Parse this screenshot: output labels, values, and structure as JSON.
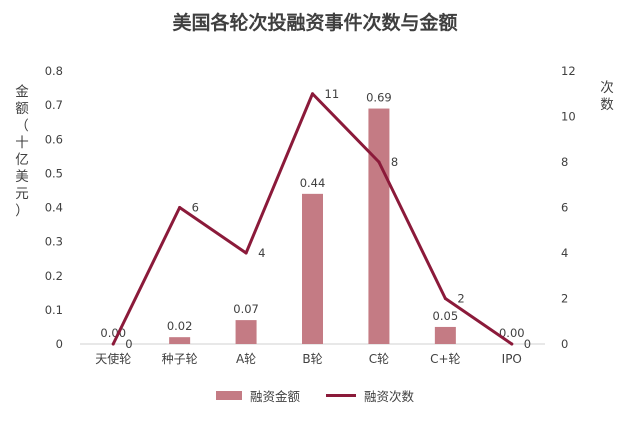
{
  "chart_data": {
    "type": "bar+line",
    "title": "美国各轮次投融资事件次数与金额",
    "ylabel_left": "金额（十亿美元）",
    "ylabel_right": "次数",
    "categories": [
      "天使轮",
      "种子轮",
      "A轮",
      "B轮",
      "C轮",
      "C+轮",
      "IPO"
    ],
    "series": [
      {
        "name": "融资金额",
        "type": "bar",
        "axis": "left",
        "values": [
          0.0,
          0.02,
          0.07,
          0.44,
          0.69,
          0.05,
          0.0
        ],
        "labels": [
          "0.00",
          "0.02",
          "0.07",
          "0.44",
          "0.69",
          "0.05",
          "0.00"
        ],
        "color": "#c47b84"
      },
      {
        "name": "融资次数",
        "type": "line",
        "axis": "right",
        "values": [
          0,
          6,
          4,
          11,
          8,
          2,
          0
        ],
        "labels": [
          "0",
          "6",
          "4",
          "11",
          "8",
          "2",
          "0"
        ],
        "color": "#8b1a3a"
      }
    ],
    "ylim_left": [
      0,
      0.8
    ],
    "yticks_left": [
      "0",
      "0.1",
      "0.2",
      "0.3",
      "0.4",
      "0.5",
      "0.6",
      "0.7",
      "0.8"
    ],
    "ylim_right": [
      0,
      12
    ],
    "yticks_right": [
      "0",
      "2",
      "4",
      "6",
      "8",
      "10",
      "12"
    ],
    "grid": false,
    "legend_position": "bottom"
  }
}
